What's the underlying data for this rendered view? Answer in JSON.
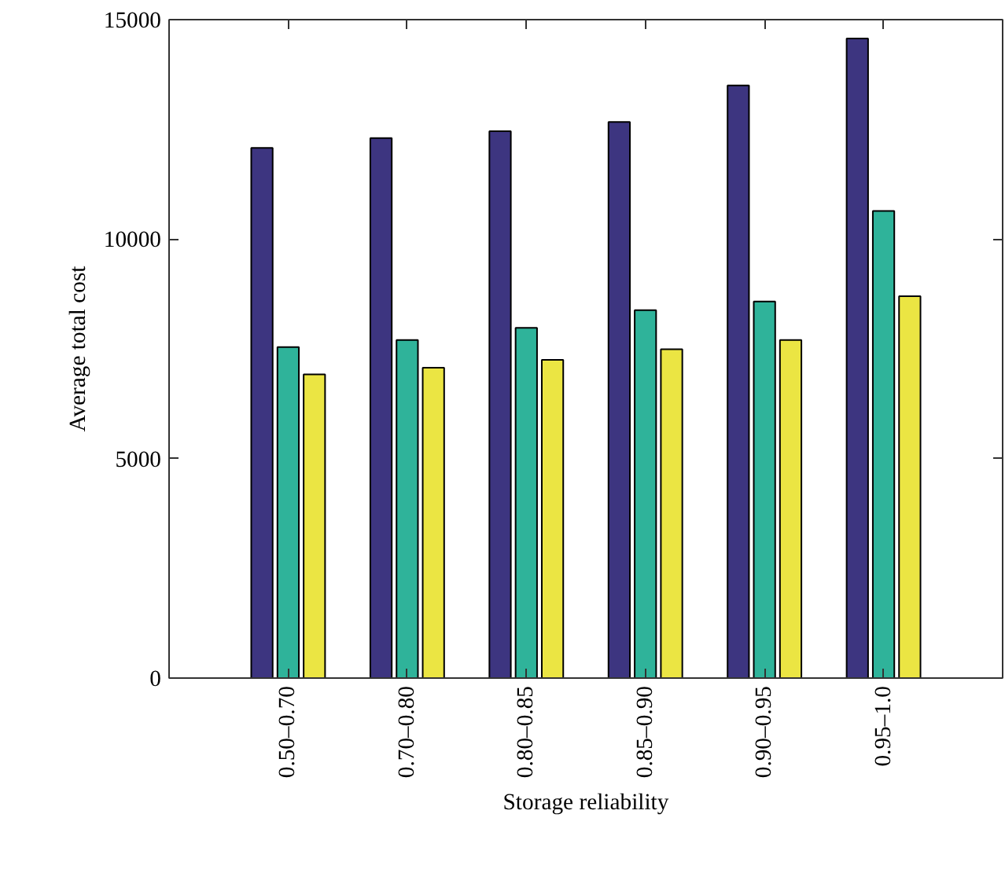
{
  "chart_data": {
    "type": "bar",
    "xlabel": "Storage reliability",
    "ylabel": "Average total cost",
    "categories": [
      "0.50–0.70",
      "0.70–0.80",
      "0.80–0.85",
      "0.85–0.90",
      "0.90–0.95",
      "0.95–1.0"
    ],
    "series": [
      {
        "color": "#3d3580",
        "values": [
          12080,
          12300,
          12460,
          12670,
          13500,
          14570
        ]
      },
      {
        "color": "#2fb39a",
        "values": [
          7540,
          7700,
          7980,
          8380,
          8580,
          10640
        ]
      },
      {
        "color": "#ebe543",
        "values": [
          6920,
          7070,
          7250,
          7490,
          7700,
          8700
        ]
      }
    ],
    "ylim": [
      0,
      15000
    ],
    "yticks": [
      0,
      5000,
      10000,
      15000
    ],
    "grid": false
  }
}
